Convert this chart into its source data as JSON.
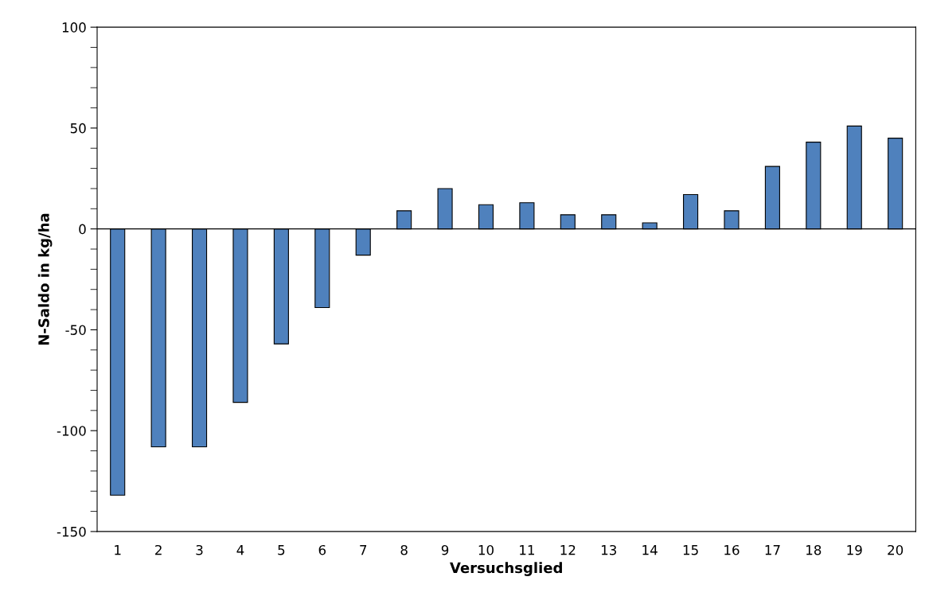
{
  "chart_data": {
    "type": "bar",
    "xlabel": "Versuchsglied",
    "ylabel": "N-Saldo in kg/ha",
    "categories": [
      "1",
      "2",
      "3",
      "4",
      "5",
      "6",
      "7",
      "8",
      "9",
      "10",
      "11",
      "12",
      "13",
      "14",
      "15",
      "16",
      "17",
      "18",
      "19",
      "20"
    ],
    "series": [
      {
        "color": "#4f81bd",
        "values": [
          -132,
          -108,
          -108,
          -86,
          -57,
          -39,
          -13,
          9,
          20,
          12,
          13,
          7,
          7,
          3,
          17,
          9,
          31,
          43,
          51,
          45
        ]
      }
    ],
    "ylim": [
      -150,
      100
    ],
    "yticks": [
      -150,
      -100,
      -50,
      0,
      50,
      100
    ],
    "ref_lines": [
      {
        "axis": "y",
        "value": 0,
        "color": "#000000"
      }
    ],
    "grid": false,
    "legend": false
  }
}
